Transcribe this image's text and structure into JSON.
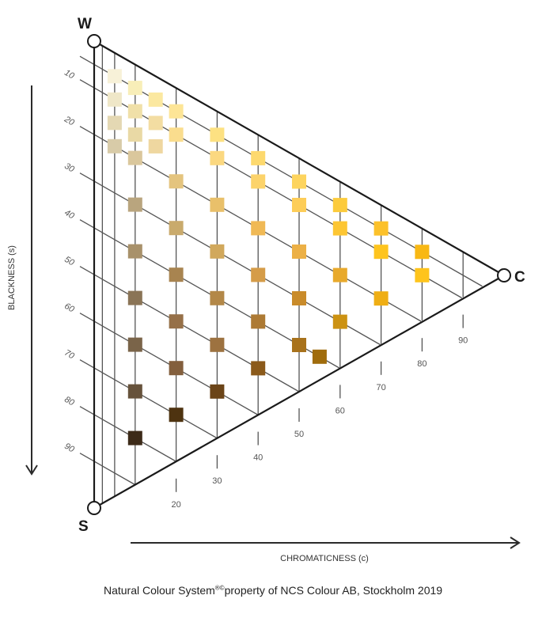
{
  "vertices": {
    "white": "W",
    "black": "S",
    "chromatic": "C"
  },
  "axes": {
    "blackness_label": "BLACKNESS (s)",
    "chromaticness_label": "CHROMATICNESS (c)",
    "blackness_ticks": [
      10,
      20,
      30,
      40,
      50,
      60,
      70,
      80,
      90
    ],
    "chromaticness_ticks": [
      20,
      30,
      40,
      50,
      60,
      70,
      80,
      90
    ]
  },
  "grid": {
    "chromaticness_lines": [
      2,
      5,
      10,
      20,
      30,
      40,
      50,
      60,
      70,
      80,
      90
    ],
    "blackness_lines": [
      5,
      10,
      20,
      30,
      40,
      50,
      60,
      70,
      80,
      90
    ]
  },
  "colors": {
    "line": "#555555",
    "edge": "#1a1a1a"
  },
  "swatches": [
    {
      "s": 5,
      "c": 5,
      "color": "#f7f1d8"
    },
    {
      "s": 10,
      "c": 5,
      "color": "#efe7c8"
    },
    {
      "s": 15,
      "c": 5,
      "color": "#e4d8b3"
    },
    {
      "s": 20,
      "c": 5,
      "color": "#d8cba8"
    },
    {
      "s": 5,
      "c": 10,
      "color": "#f8eeb8"
    },
    {
      "s": 10,
      "c": 10,
      "color": "#f0e0a8"
    },
    {
      "s": 15,
      "c": 10,
      "color": "#e9d9a5"
    },
    {
      "s": 20,
      "c": 10,
      "color": "#dac79c"
    },
    {
      "s": 30,
      "c": 10,
      "color": "#b9a57e"
    },
    {
      "s": 40,
      "c": 10,
      "color": "#a8916a"
    },
    {
      "s": 50,
      "c": 10,
      "color": "#8a7456"
    },
    {
      "s": 60,
      "c": 10,
      "color": "#7a6449"
    },
    {
      "s": 70,
      "c": 10,
      "color": "#66523b"
    },
    {
      "s": 80,
      "c": 10,
      "color": "#3c2a18"
    },
    {
      "s": 5,
      "c": 15,
      "color": "#fbe8a0"
    },
    {
      "s": 10,
      "c": 15,
      "color": "#f3dda2"
    },
    {
      "s": 15,
      "c": 15,
      "color": "#efd7a0"
    },
    {
      "s": 5,
      "c": 20,
      "color": "#fde596"
    },
    {
      "s": 10,
      "c": 20,
      "color": "#fadd8e"
    },
    {
      "s": 20,
      "c": 20,
      "color": "#e4c47e"
    },
    {
      "s": 30,
      "c": 20,
      "color": "#c9aa6c"
    },
    {
      "s": 40,
      "c": 20,
      "color": "#a88450"
    },
    {
      "s": 50,
      "c": 20,
      "color": "#967048"
    },
    {
      "s": 60,
      "c": 20,
      "color": "#835f3d"
    },
    {
      "s": 70,
      "c": 20,
      "color": "#4e3310"
    },
    {
      "s": 5,
      "c": 30,
      "color": "#fde182"
    },
    {
      "s": 10,
      "c": 30,
      "color": "#fbd880"
    },
    {
      "s": 20,
      "c": 30,
      "color": "#e9c06a"
    },
    {
      "s": 30,
      "c": 30,
      "color": "#d1a85c"
    },
    {
      "s": 40,
      "c": 30,
      "color": "#b38848"
    },
    {
      "s": 50,
      "c": 30,
      "color": "#9d7240"
    },
    {
      "s": 60,
      "c": 30,
      "color": "#6b4418"
    },
    {
      "s": 5,
      "c": 40,
      "color": "#fdd96e"
    },
    {
      "s": 10,
      "c": 40,
      "color": "#fcd36a"
    },
    {
      "s": 20,
      "c": 40,
      "color": "#f0b955"
    },
    {
      "s": 30,
      "c": 40,
      "color": "#d59c48"
    },
    {
      "s": 40,
      "c": 40,
      "color": "#ad7a34"
    },
    {
      "s": 50,
      "c": 40,
      "color": "#8b5a1a"
    },
    {
      "s": 5,
      "c": 50,
      "color": "#fdd45e"
    },
    {
      "s": 10,
      "c": 50,
      "color": "#fdcd58"
    },
    {
      "s": 20,
      "c": 50,
      "color": "#ecb046"
    },
    {
      "s": 30,
      "c": 50,
      "color": "#c98b2a"
    },
    {
      "s": 40,
      "c": 50,
      "color": "#a8721c"
    },
    {
      "s": 40,
      "c": 55,
      "color": "#a06c0c"
    },
    {
      "s": 5,
      "c": 60,
      "color": "#fccb3c"
    },
    {
      "s": 10,
      "c": 60,
      "color": "#fdc633"
    },
    {
      "s": 20,
      "c": 60,
      "color": "#e8a92b"
    },
    {
      "s": 30,
      "c": 60,
      "color": "#cc9212"
    },
    {
      "s": 5,
      "c": 70,
      "color": "#fcc12a"
    },
    {
      "s": 10,
      "c": 70,
      "color": "#fec41e"
    },
    {
      "s": 20,
      "c": 70,
      "color": "#efae14"
    },
    {
      "s": 5,
      "c": 80,
      "color": "#f8b814"
    },
    {
      "s": 10,
      "c": 80,
      "color": "#fec41c"
    }
  ],
  "footer": {
    "text_before": "Natural Colour System",
    "marks": "®©",
    "text_after": "property of NCS Colour AB, Stockholm 2019"
  }
}
